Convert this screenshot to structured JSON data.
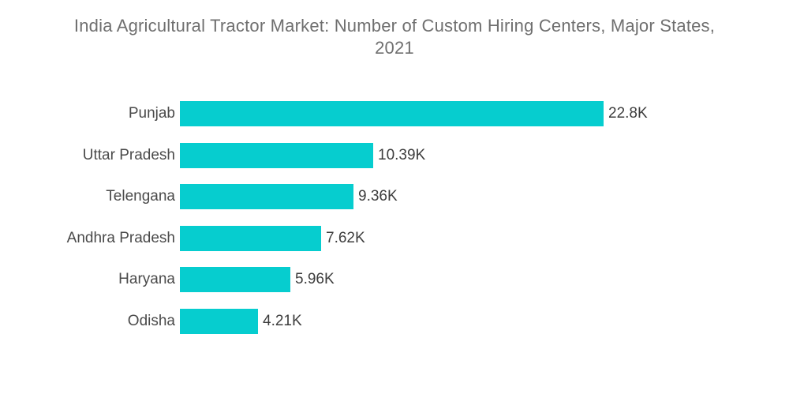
{
  "header": {
    "title_line1": "India Agricultural Tractor Market: Number of Custom Hiring Centers, Major States,",
    "title_line2": "2021"
  },
  "chart_data": {
    "type": "bar",
    "orientation": "horizontal",
    "title": "India Agricultural Tractor Market: Number of Custom Hiring Centers, Major States, 2021",
    "categories": [
      "Punjab",
      "Uttar Pradesh",
      "Telengana",
      "Andhra Pradesh",
      "Haryana",
      "Odisha"
    ],
    "values": [
      22.8,
      10.39,
      9.36,
      7.62,
      5.96,
      4.21
    ],
    "value_labels": [
      "22.8K",
      "10.39K",
      "9.36K",
      "7.62K",
      "5.96K",
      "4.21K"
    ],
    "unit": "K (thousands of centers)",
    "xlabel": "",
    "ylabel": "",
    "xlim": [
      0,
      22.8
    ],
    "grid": false,
    "legend": false,
    "value_labels_position": "outside-end",
    "bar_color": "#06CDCF",
    "title_color": "#6F6F6F",
    "category_label_color": "#4A4A4A",
    "value_label_color": "#3D3D3D",
    "background_color": "#FFFFFF"
  }
}
